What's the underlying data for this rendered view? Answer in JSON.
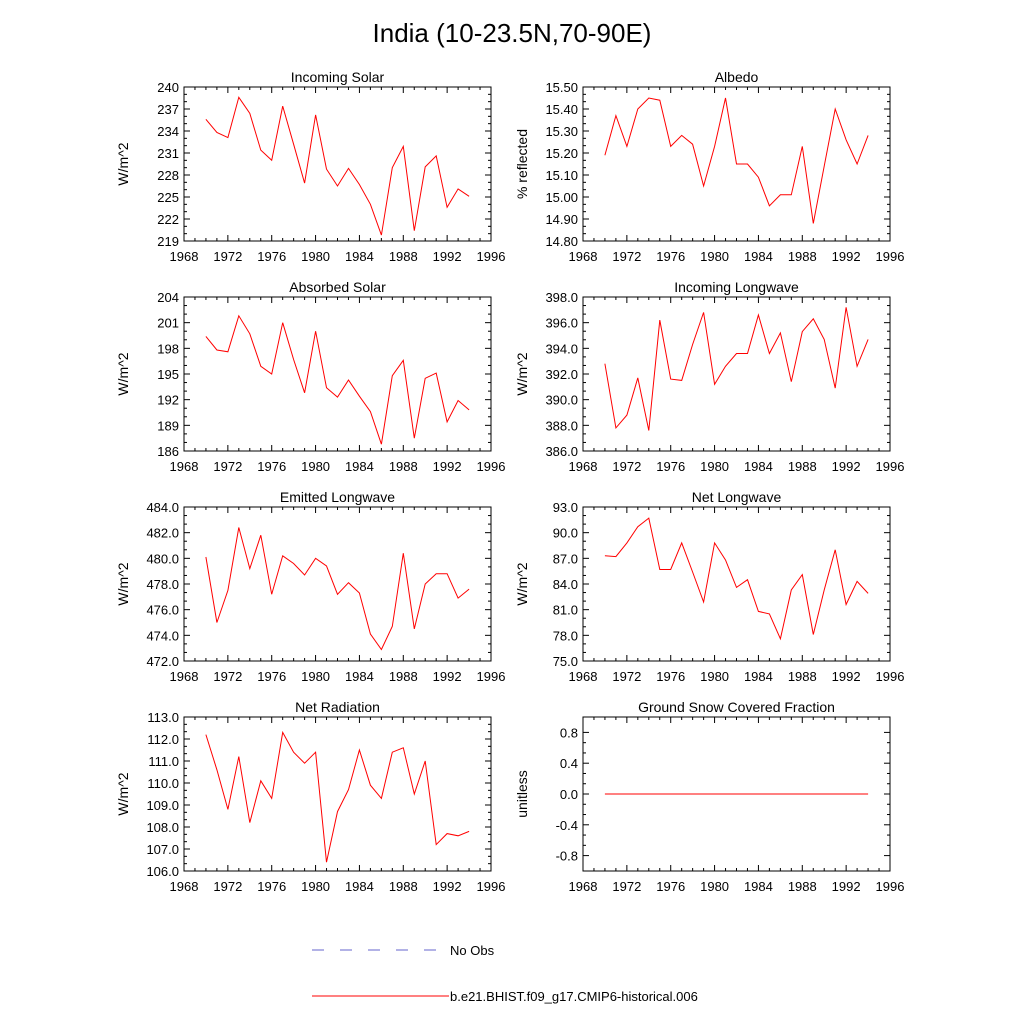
{
  "title": "India (10-23.5N,70-90E)",
  "x_axis": {
    "range": [
      1968,
      1996
    ],
    "ticks": [
      1968,
      1972,
      1976,
      1980,
      1984,
      1988,
      1992,
      1996
    ],
    "tick_labels": [
      "1968",
      "1972",
      "1976",
      "1980",
      "1984",
      "1988",
      "1992",
      "1996"
    ]
  },
  "legend": {
    "items": [
      {
        "label": "No Obs",
        "color": "#6666cc",
        "style": "dashed"
      },
      {
        "label": "b.e21.BHIST.f09_g17.CMIP6-historical.006",
        "color": "#ff0000",
        "style": "solid"
      }
    ]
  },
  "colors": {
    "model": "#ff0000",
    "obs": "#6666cc",
    "axis": "#000000"
  },
  "chart_data": [
    {
      "type": "line",
      "title": "Incoming Solar",
      "xlabel": "",
      "ylabel": "W/m^2",
      "ylim": [
        219,
        240
      ],
      "yticks": [
        219,
        222,
        225,
        228,
        231,
        234,
        237,
        240
      ],
      "ytick_labels": [
        "219",
        "222",
        "225",
        "228",
        "231",
        "234",
        "237",
        "240"
      ],
      "series": [
        {
          "name": "b.e21.BHIST.f09_g17.CMIP6-historical.006",
          "x": [
            1970,
            1971,
            1972,
            1973,
            1974,
            1975,
            1976,
            1977,
            1978,
            1979,
            1980,
            1981,
            1982,
            1983,
            1984,
            1985,
            1986,
            1987,
            1988,
            1989,
            1990,
            1991,
            1992,
            1993,
            1994
          ],
          "values": [
            235.6,
            233.8,
            233.1,
            238.6,
            236.4,
            231.4,
            230.0,
            237.4,
            232.2,
            226.9,
            236.2,
            228.8,
            226.5,
            228.9,
            226.7,
            224.0,
            219.8,
            229.0,
            231.9,
            220.4,
            229.1,
            230.6,
            223.6,
            226.1,
            225.1
          ]
        }
      ]
    },
    {
      "type": "line",
      "title": "Albedo",
      "xlabel": "",
      "ylabel": "% reflected",
      "ylim": [
        14.8,
        15.5
      ],
      "yticks": [
        14.8,
        14.9,
        15.0,
        15.1,
        15.2,
        15.3,
        15.4,
        15.5
      ],
      "ytick_labels": [
        "14.80",
        "14.90",
        "15.00",
        "15.10",
        "15.20",
        "15.30",
        "15.40",
        "15.50"
      ],
      "series": [
        {
          "name": "b.e21.BHIST.f09_g17.CMIP6-historical.006",
          "x": [
            1970,
            1971,
            1972,
            1973,
            1974,
            1975,
            1976,
            1977,
            1978,
            1979,
            1980,
            1981,
            1982,
            1983,
            1984,
            1985,
            1986,
            1987,
            1988,
            1989,
            1990,
            1991,
            1992,
            1993,
            1994
          ],
          "values": [
            15.19,
            15.37,
            15.23,
            15.4,
            15.45,
            15.44,
            15.23,
            15.28,
            15.24,
            15.05,
            15.23,
            15.45,
            15.15,
            15.15,
            15.09,
            14.96,
            15.01,
            15.01,
            15.23,
            14.88,
            15.14,
            15.4,
            15.26,
            15.15,
            15.28
          ]
        }
      ]
    },
    {
      "type": "line",
      "title": "Absorbed Solar",
      "xlabel": "",
      "ylabel": "W/m^2",
      "ylim": [
        186,
        204
      ],
      "yticks": [
        186,
        189,
        192,
        195,
        198,
        201,
        204
      ],
      "ytick_labels": [
        "186",
        "189",
        "192",
        "195",
        "198",
        "201",
        "204"
      ],
      "series": [
        {
          "name": "b.e21.BHIST.f09_g17.CMIP6-historical.006",
          "x": [
            1970,
            1971,
            1972,
            1973,
            1974,
            1975,
            1976,
            1977,
            1978,
            1979,
            1980,
            1981,
            1982,
            1983,
            1984,
            1985,
            1986,
            1987,
            1988,
            1989,
            1990,
            1991,
            1992,
            1993,
            1994
          ],
          "values": [
            199.4,
            197.8,
            197.6,
            201.8,
            199.7,
            195.9,
            195.0,
            201.0,
            196.7,
            192.8,
            200.0,
            193.4,
            192.3,
            194.3,
            192.4,
            190.6,
            186.8,
            194.8,
            196.6,
            187.5,
            194.5,
            195.1,
            189.4,
            191.9,
            190.8
          ]
        }
      ]
    },
    {
      "type": "line",
      "title": "Incoming Longwave",
      "xlabel": "",
      "ylabel": "W/m^2",
      "ylim": [
        386,
        398
      ],
      "yticks": [
        386,
        388,
        390,
        392,
        394,
        396,
        398
      ],
      "ytick_labels": [
        "386.0",
        "388.0",
        "390.0",
        "392.0",
        "394.0",
        "396.0",
        "398.0"
      ],
      "series": [
        {
          "name": "b.e21.BHIST.f09_g17.CMIP6-historical.006",
          "x": [
            1970,
            1971,
            1972,
            1973,
            1974,
            1975,
            1976,
            1977,
            1978,
            1979,
            1980,
            1981,
            1982,
            1983,
            1984,
            1985,
            1986,
            1987,
            1988,
            1989,
            1990,
            1991,
            1992,
            1993,
            1994
          ],
          "values": [
            392.8,
            387.8,
            388.8,
            391.7,
            387.6,
            396.2,
            391.6,
            391.5,
            394.3,
            396.8,
            391.2,
            392.6,
            393.6,
            393.6,
            396.6,
            393.6,
            395.2,
            391.4,
            395.3,
            396.3,
            394.7,
            390.9,
            397.2,
            392.6,
            394.7
          ]
        }
      ]
    },
    {
      "type": "line",
      "title": "Emitted Longwave",
      "xlabel": "",
      "ylabel": "W/m^2",
      "ylim": [
        472,
        484
      ],
      "yticks": [
        472,
        474,
        476,
        478,
        480,
        482,
        484
      ],
      "ytick_labels": [
        "472.0",
        "474.0",
        "476.0",
        "478.0",
        "480.0",
        "482.0",
        "484.0"
      ],
      "series": [
        {
          "name": "b.e21.BHIST.f09_g17.CMIP6-historical.006",
          "x": [
            1970,
            1971,
            1972,
            1973,
            1974,
            1975,
            1976,
            1977,
            1978,
            1979,
            1980,
            1981,
            1982,
            1983,
            1984,
            1985,
            1986,
            1987,
            1988,
            1989,
            1990,
            1991,
            1992,
            1993,
            1994
          ],
          "values": [
            480.1,
            475.0,
            477.5,
            482.4,
            479.2,
            481.8,
            477.2,
            480.2,
            479.6,
            478.7,
            480.0,
            479.4,
            477.2,
            478.1,
            477.3,
            474.1,
            472.9,
            474.7,
            480.4,
            474.5,
            478.0,
            478.8,
            478.8,
            476.9,
            477.6
          ]
        }
      ]
    },
    {
      "type": "line",
      "title": "Net Longwave",
      "xlabel": "",
      "ylabel": "W/m^2",
      "ylim": [
        75,
        93
      ],
      "yticks": [
        75,
        78,
        81,
        84,
        87,
        90,
        93
      ],
      "ytick_labels": [
        "75.0",
        "78.0",
        "81.0",
        "84.0",
        "87.0",
        "90.0",
        "93.0"
      ],
      "series": [
        {
          "name": "b.e21.BHIST.f09_g17.CMIP6-historical.006",
          "x": [
            1970,
            1971,
            1972,
            1973,
            1974,
            1975,
            1976,
            1977,
            1978,
            1979,
            1980,
            1981,
            1982,
            1983,
            1984,
            1985,
            1986,
            1987,
            1988,
            1989,
            1990,
            1991,
            1992,
            1993,
            1994
          ],
          "values": [
            87.3,
            87.2,
            88.8,
            90.7,
            91.7,
            85.7,
            85.7,
            88.8,
            85.4,
            81.9,
            88.8,
            86.8,
            83.6,
            84.5,
            80.8,
            80.5,
            77.6,
            83.3,
            85.1,
            78.1,
            83.3,
            88.0,
            81.6,
            84.3,
            82.9
          ]
        }
      ]
    },
    {
      "type": "line",
      "title": "Net Radiation",
      "xlabel": "",
      "ylabel": "W/m^2",
      "ylim": [
        106,
        113
      ],
      "yticks": [
        106,
        107,
        108,
        109,
        110,
        111,
        112,
        113
      ],
      "ytick_labels": [
        "106.0",
        "107.0",
        "108.0",
        "109.0",
        "110.0",
        "111.0",
        "112.0",
        "113.0"
      ],
      "series": [
        {
          "name": "b.e21.BHIST.f09_g17.CMIP6-historical.006",
          "x": [
            1970,
            1971,
            1972,
            1973,
            1974,
            1975,
            1976,
            1977,
            1978,
            1979,
            1980,
            1981,
            1982,
            1983,
            1984,
            1985,
            1986,
            1987,
            1988,
            1989,
            1990,
            1991,
            1992,
            1993,
            1994
          ],
          "values": [
            112.2,
            110.6,
            108.8,
            111.2,
            108.2,
            110.1,
            109.3,
            112.3,
            111.4,
            110.9,
            111.4,
            106.4,
            108.7,
            109.7,
            111.5,
            109.9,
            109.3,
            111.4,
            111.6,
            109.5,
            111.0,
            107.2,
            107.7,
            107.6,
            107.8
          ]
        }
      ]
    },
    {
      "type": "line",
      "title": "Ground Snow Covered Fraction",
      "xlabel": "",
      "ylabel": "unitless",
      "ylim": [
        -1.0,
        1.0
      ],
      "yticks": [
        -0.8,
        -0.4,
        0.0,
        0.4,
        0.8
      ],
      "ytick_labels": [
        "-0.8",
        "-0.4",
        "0.0",
        "0.4",
        "0.8"
      ],
      "series": [
        {
          "name": "b.e21.BHIST.f09_g17.CMIP6-historical.006",
          "x": [
            1970,
            1994
          ],
          "values": [
            0.0,
            0.0
          ]
        }
      ]
    }
  ]
}
